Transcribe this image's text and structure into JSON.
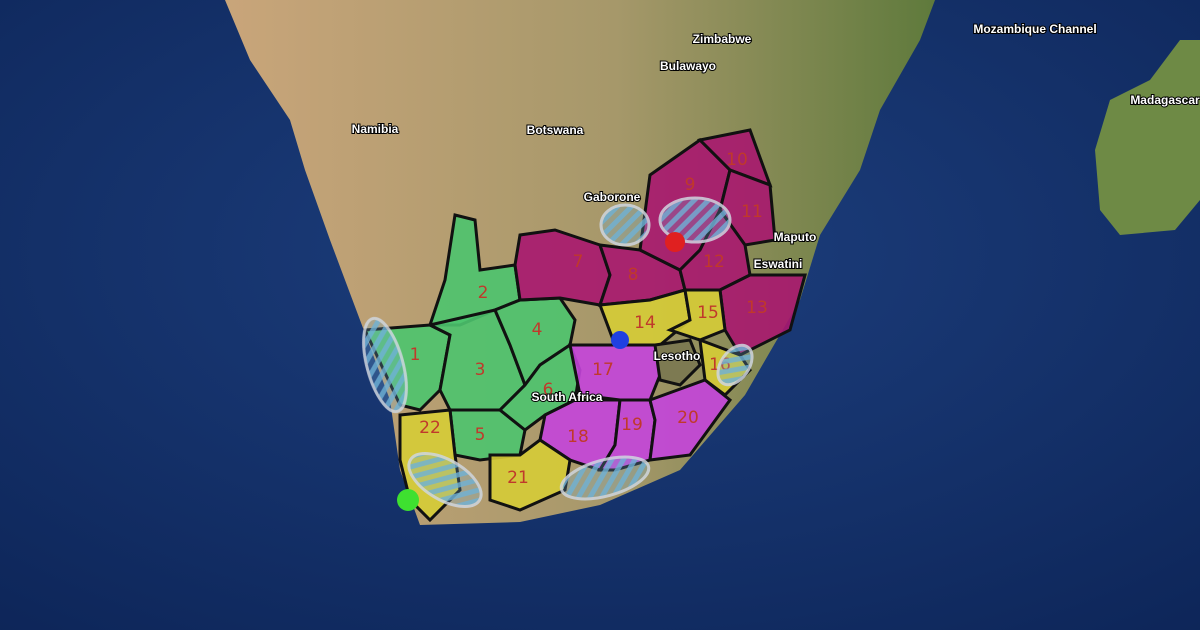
{
  "map": {
    "labels": [
      {
        "text": "Namibia"
      },
      {
        "text": "Botswana"
      },
      {
        "text": "Zimbabwe"
      },
      {
        "text": "Madagascar"
      },
      {
        "text": "Mozambique Channel"
      },
      {
        "text": "Lesotho"
      },
      {
        "text": "South Africa"
      },
      {
        "text": "Eswatini"
      },
      {
        "text": "Maputo"
      },
      {
        "text": "Gaborone"
      },
      {
        "text": "Bulawayo"
      }
    ],
    "regions": [
      {
        "label": "1",
        "color": "#4cc46e"
      },
      {
        "label": "2",
        "color": "#4cc46e"
      },
      {
        "label": "3",
        "color": "#4cc46e"
      },
      {
        "label": "4",
        "color": "#4cc46e"
      },
      {
        "label": "5",
        "color": "#4cc46e"
      },
      {
        "label": "6",
        "color": "#4cc46e"
      },
      {
        "label": "7",
        "color": "#a8176f"
      },
      {
        "label": "8",
        "color": "#a8176f"
      },
      {
        "label": "9",
        "color": "#a8176f"
      },
      {
        "label": "10",
        "color": "#a8176f"
      },
      {
        "label": "11",
        "color": "#a8176f"
      },
      {
        "label": "12",
        "color": "#a8176f"
      },
      {
        "label": "13",
        "color": "#a8176f"
      },
      {
        "label": "14",
        "color": "#d6cc36"
      },
      {
        "label": "15",
        "color": "#d6cc36"
      },
      {
        "label": "16",
        "color": "#d6cc36"
      },
      {
        "label": "17",
        "color": "#c444dc"
      },
      {
        "label": "18",
        "color": "#c444dc"
      },
      {
        "label": "19",
        "color": "#c444dc"
      },
      {
        "label": "20",
        "color": "#c444dc"
      },
      {
        "label": "21",
        "color": "#d6cc36"
      },
      {
        "label": "22",
        "color": "#d6cc36"
      }
    ]
  }
}
